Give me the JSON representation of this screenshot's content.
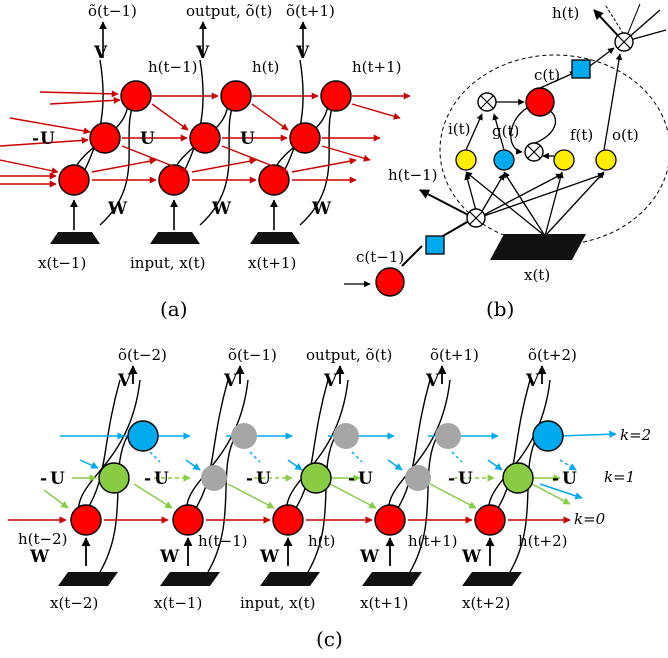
{
  "panel_a": {
    "caption": "(a)",
    "top_labels": [
      "õ(t−1)",
      "output, õ(t)",
      "õ(t+1)"
    ],
    "hidden_labels": [
      "h(t−1)",
      "h(t)",
      "h(t+1)"
    ],
    "bottom_labels": [
      "x(t−1)",
      "input, x(t)",
      "x(t+1)"
    ],
    "weight_V": "V",
    "weight_U": "U",
    "weight_W": "W",
    "dash": "-"
  },
  "panel_b": {
    "caption": "(b)",
    "h_out": "h(t)",
    "c_label": "c(t)",
    "i_label": "i(t)",
    "g_label": "g(t)",
    "f_label": "f(t)",
    "o_label": "o(t)",
    "h_prev": "h(t−1)",
    "c_prev": "c(t−1)",
    "x_label": "x(t)"
  },
  "panel_c": {
    "caption": "(c)",
    "top_labels": [
      "õ(t−2)",
      "õ(t−1)",
      "output, õ(t)",
      "õ(t+1)",
      "õ(t+2)"
    ],
    "hidden_labels": [
      "h(t−2)",
      "h(t−1)",
      "h(t)",
      "h(t+1)",
      "h(t+2)"
    ],
    "bottom_labels": [
      "x(t−2)",
      "x(t−1)",
      "input, x(t)",
      "x(t+1)",
      "x(t+2)"
    ],
    "k_labels": [
      "k=2",
      "k=1",
      "k=0"
    ],
    "weight_V": "V",
    "weight_U": "U",
    "weight_W": "W",
    "dash": "-"
  },
  "colors": {
    "red": "#ff0000",
    "blue": "#00aaee",
    "green": "#88cc44",
    "gray": "#a6a6a6",
    "yellow": "#ffee00",
    "dark_red_arrow": "#cc0000"
  }
}
